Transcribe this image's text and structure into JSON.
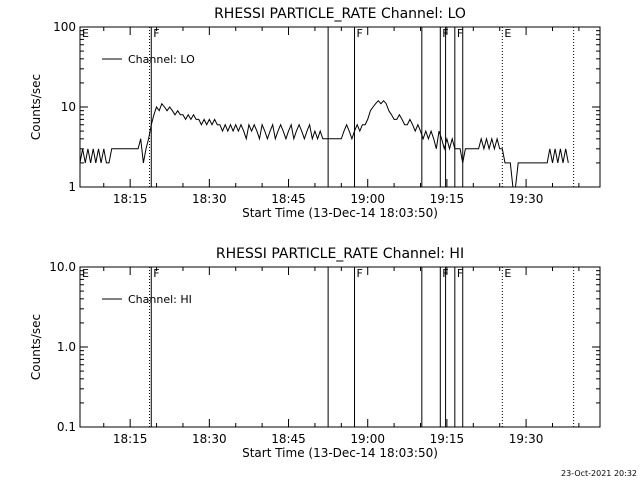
{
  "footer": {
    "timestamp": "23-Oct-2021 20:32"
  },
  "chart_data": [
    {
      "type": "line",
      "title": "RHESSI PARTICLE_RATE Channel: LO",
      "xlabel": "Start Time (13-Dec-14 18:03:50)",
      "ylabel": "Counts/sec",
      "yscale": "log",
      "xlim": [
        "18:05:30",
        "19:44:00"
      ],
      "ylim": [
        1,
        100
      ],
      "x_ticks": [
        "18:15",
        "18:30",
        "18:45",
        "19:00",
        "19:15",
        "19:30"
      ],
      "y_ticks": [
        "1",
        "10",
        "100"
      ],
      "legend": {
        "entries": [
          "Channel: LO"
        ],
        "placement": "top-left"
      },
      "color": "#000000",
      "markers": [
        {
          "time": "18:05:30",
          "label": "E",
          "style": "none"
        },
        {
          "time": "18:18:40",
          "label": "",
          "style": "dotted"
        },
        {
          "time": "18:19:00",
          "label": "F",
          "style": "solid"
        },
        {
          "time": "18:52:30",
          "label": "",
          "style": "solid"
        },
        {
          "time": "18:57:30",
          "label": "F",
          "style": "solid"
        },
        {
          "time": "19:10:15",
          "label": "",
          "style": "solid"
        },
        {
          "time": "19:13:45",
          "label": "F",
          "style": "solid"
        },
        {
          "time": "19:14:45",
          "label": "",
          "style": "solid"
        },
        {
          "time": "19:16:30",
          "label": "F",
          "style": "solid"
        },
        {
          "time": "19:18:00",
          "label": "",
          "style": "solid"
        },
        {
          "time": "19:25:30",
          "label": "E",
          "style": "dotted"
        },
        {
          "time": "19:39:00",
          "label": "",
          "style": "dotted"
        }
      ],
      "series": [
        {
          "name": "Channel: LO",
          "points": [
            [
              "18:05:30",
              2
            ],
            [
              "18:06:00",
              3
            ],
            [
              "18:06:30",
              2
            ],
            [
              "18:07:00",
              3
            ],
            [
              "18:07:30",
              2
            ],
            [
              "18:08:00",
              3
            ],
            [
              "18:08:30",
              2
            ],
            [
              "18:09:00",
              3
            ],
            [
              "18:09:30",
              2
            ],
            [
              "18:10:00",
              3
            ],
            [
              "18:10:30",
              2
            ],
            [
              "18:11:00",
              2
            ],
            [
              "18:11:30",
              3
            ],
            [
              "18:12:00",
              3
            ],
            [
              "18:12:30",
              3
            ],
            [
              "18:13:00",
              3
            ],
            [
              "18:13:30",
              3
            ],
            [
              "18:14:00",
              3
            ],
            [
              "18:14:30",
              3
            ],
            [
              "18:15:00",
              3
            ],
            [
              "18:15:30",
              3
            ],
            [
              "18:16:00",
              3
            ],
            [
              "18:16:30",
              3
            ],
            [
              "18:17:00",
              4
            ],
            [
              "18:17:30",
              2
            ],
            [
              "18:18:00",
              3
            ],
            [
              "18:18:30",
              4
            ],
            [
              "18:19:00",
              6
            ],
            [
              "18:19:30",
              8
            ],
            [
              "18:20:00",
              10
            ],
            [
              "18:20:30",
              9
            ],
            [
              "18:21:00",
              11
            ],
            [
              "18:21:30",
              10
            ],
            [
              "18:22:00",
              9
            ],
            [
              "18:22:30",
              10
            ],
            [
              "18:23:00",
              9
            ],
            [
              "18:23:30",
              8
            ],
            [
              "18:24:00",
              9
            ],
            [
              "18:24:30",
              8
            ],
            [
              "18:25:00",
              8
            ],
            [
              "18:25:30",
              7
            ],
            [
              "18:26:00",
              8
            ],
            [
              "18:26:30",
              7
            ],
            [
              "18:27:00",
              8
            ],
            [
              "18:27:30",
              7
            ],
            [
              "18:28:00",
              7
            ],
            [
              "18:28:30",
              6
            ],
            [
              "18:29:00",
              7
            ],
            [
              "18:29:30",
              6
            ],
            [
              "18:30:00",
              7
            ],
            [
              "18:30:30",
              6
            ],
            [
              "18:31:00",
              7
            ],
            [
              "18:31:30",
              6
            ],
            [
              "18:32:00",
              6
            ],
            [
              "18:32:30",
              5
            ],
            [
              "18:33:00",
              6
            ],
            [
              "18:33:30",
              5
            ],
            [
              "18:34:00",
              6
            ],
            [
              "18:34:30",
              5
            ],
            [
              "18:35:00",
              6
            ],
            [
              "18:35:30",
              5
            ],
            [
              "18:36:00",
              6
            ],
            [
              "18:36:30",
              5
            ],
            [
              "18:37:00",
              4
            ],
            [
              "18:37:30",
              6
            ],
            [
              "18:38:00",
              5
            ],
            [
              "18:38:30",
              6
            ],
            [
              "18:39:00",
              5
            ],
            [
              "18:39:30",
              4
            ],
            [
              "18:40:00",
              6
            ],
            [
              "18:40:30",
              5
            ],
            [
              "18:41:00",
              4
            ],
            [
              "18:41:30",
              5
            ],
            [
              "18:42:00",
              6
            ],
            [
              "18:42:30",
              4
            ],
            [
              "18:43:00",
              5
            ],
            [
              "18:43:30",
              6
            ],
            [
              "18:44:00",
              5
            ],
            [
              "18:44:30",
              4
            ],
            [
              "18:45:00",
              5
            ],
            [
              "18:45:30",
              6
            ],
            [
              "18:46:00",
              4
            ],
            [
              "18:46:30",
              5
            ],
            [
              "18:47:00",
              6
            ],
            [
              "18:47:30",
              5
            ],
            [
              "18:48:00",
              4
            ],
            [
              "18:48:30",
              5
            ],
            [
              "18:49:00",
              6
            ],
            [
              "18:49:30",
              4
            ],
            [
              "18:50:00",
              5
            ],
            [
              "18:50:30",
              4
            ],
            [
              "18:51:00",
              5
            ],
            [
              "18:51:30",
              4
            ],
            [
              "18:52:00",
              4
            ],
            [
              "18:52:30",
              4
            ],
            [
              "18:53:00",
              4
            ],
            [
              "18:53:30",
              4
            ],
            [
              "18:54:00",
              4
            ],
            [
              "18:54:30",
              4
            ],
            [
              "18:55:00",
              4
            ],
            [
              "18:55:30",
              5
            ],
            [
              "18:56:00",
              6
            ],
            [
              "18:56:30",
              5
            ],
            [
              "18:57:00",
              4
            ],
            [
              "18:57:30",
              5
            ],
            [
              "18:58:00",
              6
            ],
            [
              "18:58:30",
              5
            ],
            [
              "18:59:00",
              6
            ],
            [
              "18:59:30",
              6
            ],
            [
              "19:00:00",
              7
            ],
            [
              "19:00:30",
              9
            ],
            [
              "19:01:00",
              10
            ],
            [
              "19:01:30",
              11
            ],
            [
              "19:02:00",
              12
            ],
            [
              "19:02:30",
              11
            ],
            [
              "19:03:00",
              12
            ],
            [
              "19:03:30",
              11
            ],
            [
              "19:04:00",
              9
            ],
            [
              "19:04:30",
              8
            ],
            [
              "19:05:00",
              7
            ],
            [
              "19:05:30",
              7
            ],
            [
              "19:06:00",
              8
            ],
            [
              "19:06:30",
              7
            ],
            [
              "19:07:00",
              6
            ],
            [
              "19:07:30",
              6
            ],
            [
              "19:08:00",
              7
            ],
            [
              "19:08:30",
              6
            ],
            [
              "19:09:00",
              5
            ],
            [
              "19:09:30",
              6
            ],
            [
              "19:10:00",
              5
            ],
            [
              "19:10:30",
              4
            ],
            [
              "19:11:00",
              5
            ],
            [
              "19:11:30",
              4
            ],
            [
              "19:12:00",
              5
            ],
            [
              "19:12:30",
              4
            ],
            [
              "19:13:00",
              3
            ],
            [
              "19:13:30",
              5
            ],
            [
              "19:14:00",
              4
            ],
            [
              "19:14:30",
              3
            ],
            [
              "19:15:00",
              4
            ],
            [
              "19:15:30",
              3
            ],
            [
              "19:16:00",
              4
            ],
            [
              "19:16:30",
              3
            ],
            [
              "19:17:00",
              3
            ],
            [
              "19:17:30",
              3
            ],
            [
              "19:18:00",
              2
            ],
            [
              "19:18:30",
              3
            ],
            [
              "19:19:00",
              3
            ],
            [
              "19:19:30",
              3
            ],
            [
              "19:20:00",
              3
            ],
            [
              "19:20:30",
              3
            ],
            [
              "19:21:00",
              3
            ],
            [
              "19:21:30",
              4
            ],
            [
              "19:22:00",
              3
            ],
            [
              "19:22:30",
              4
            ],
            [
              "19:23:00",
              3
            ],
            [
              "19:23:30",
              4
            ],
            [
              "19:24:00",
              3
            ],
            [
              "19:24:30",
              4
            ],
            [
              "19:25:00",
              3
            ],
            [
              "19:25:30",
              3
            ],
            [
              "19:26:00",
              2
            ],
            [
              "19:26:30",
              2
            ],
            [
              "19:27:00",
              2
            ],
            [
              "19:27:30",
              1
            ],
            [
              "19:28:00",
              1
            ],
            [
              "19:28:30",
              2
            ],
            [
              "19:29:00",
              2
            ],
            [
              "19:29:30",
              2
            ],
            [
              "19:30:00",
              2
            ],
            [
              "19:30:30",
              2
            ],
            [
              "19:31:00",
              2
            ],
            [
              "19:31:30",
              2
            ],
            [
              "19:32:00",
              2
            ],
            [
              "19:32:30",
              2
            ],
            [
              "19:33:00",
              2
            ],
            [
              "19:33:30",
              2
            ],
            [
              "19:34:00",
              2
            ],
            [
              "19:34:30",
              3
            ],
            [
              "19:35:00",
              2
            ],
            [
              "19:35:30",
              3
            ],
            [
              "19:36:00",
              2
            ],
            [
              "19:36:30",
              3
            ],
            [
              "19:37:00",
              2
            ],
            [
              "19:37:30",
              3
            ],
            [
              "19:38:00",
              2
            ]
          ]
        }
      ]
    },
    {
      "type": "line",
      "title": "RHESSI PARTICLE_RATE Channel: HI",
      "xlabel": "Start Time (13-Dec-14 18:03:50)",
      "ylabel": "Counts/sec",
      "yscale": "log",
      "xlim": [
        "18:05:30",
        "19:44:00"
      ],
      "ylim": [
        0.1,
        10.0
      ],
      "x_ticks": [
        "18:15",
        "18:30",
        "18:45",
        "19:00",
        "19:15",
        "19:30"
      ],
      "y_ticks": [
        "0.1",
        "1.0",
        "10.0"
      ],
      "legend": {
        "entries": [
          "Channel: HI"
        ],
        "placement": "top-left"
      },
      "color": "#000000",
      "markers": [
        {
          "time": "18:05:30",
          "label": "E",
          "style": "none"
        },
        {
          "time": "18:18:40",
          "label": "",
          "style": "dotted"
        },
        {
          "time": "18:19:00",
          "label": "F",
          "style": "solid"
        },
        {
          "time": "18:52:30",
          "label": "",
          "style": "solid"
        },
        {
          "time": "18:57:30",
          "label": "F",
          "style": "solid"
        },
        {
          "time": "19:10:15",
          "label": "",
          "style": "solid"
        },
        {
          "time": "19:13:45",
          "label": "F",
          "style": "solid"
        },
        {
          "time": "19:14:45",
          "label": "",
          "style": "solid"
        },
        {
          "time": "19:16:30",
          "label": "F",
          "style": "solid"
        },
        {
          "time": "19:18:00",
          "label": "",
          "style": "solid"
        },
        {
          "time": "19:25:30",
          "label": "E",
          "style": "dotted"
        },
        {
          "time": "19:39:00",
          "label": "",
          "style": "dotted"
        }
      ],
      "series": []
    }
  ]
}
